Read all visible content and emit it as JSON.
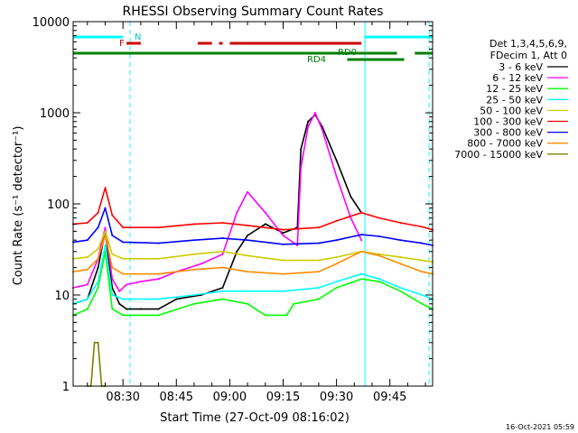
{
  "chart_data": {
    "type": "line",
    "title": "RHESSI Observing Summary Count Rates",
    "xlabel": "Start Time (27-Oct-09 08:16:02)",
    "ylabel": "Count Rate (s⁻¹ detector⁻¹)",
    "yscale": "log",
    "ylim": [
      1,
      10000
    ],
    "xlim": [
      "08:16",
      "09:57"
    ],
    "x_ticks": [
      "08:30",
      "08:45",
      "09:00",
      "09:15",
      "09:30",
      "09:45"
    ],
    "y_ticks": [
      "1",
      "10",
      "100",
      "1000",
      "10000"
    ],
    "legend_header": [
      "Det 1,3,4,5,6,9,",
      "FDecim 1, Att 0"
    ],
    "legend_position": "right",
    "timestamp": "16-Oct-2021 05:59",
    "flag_labels": {
      "N": "N",
      "F": "F",
      "RD0": "RD0",
      "RD4": "RD4"
    },
    "series": [
      {
        "name": "3 - 6 keV",
        "color": "#000000",
        "x": [
          "08:16",
          "08:20",
          "08:23",
          "08:25",
          "08:27",
          "08:29",
          "08:31",
          "08:35",
          "08:40",
          "08:45",
          "08:52",
          "08:58",
          "09:02",
          "09:05",
          "09:10",
          "09:15",
          "09:19",
          "09:20",
          "09:22",
          "09:24",
          "09:26",
          "09:30",
          "09:34",
          "09:37"
        ],
        "values": [
          8,
          9,
          20,
          50,
          12,
          8,
          7,
          7,
          7,
          9,
          10,
          12,
          30,
          45,
          60,
          48,
          55,
          400,
          800,
          950,
          700,
          300,
          120,
          80
        ]
      },
      {
        "name": "6 - 12 keV",
        "color": "#ff00ff",
        "x": [
          "08:16",
          "08:20",
          "08:23",
          "08:25",
          "08:27",
          "08:29",
          "08:31",
          "08:35",
          "08:40",
          "08:45",
          "08:52",
          "08:58",
          "09:02",
          "09:05",
          "09:10",
          "09:15",
          "09:19",
          "09:20",
          "09:22",
          "09:24",
          "09:26",
          "09:30",
          "09:34",
          "09:37"
        ],
        "values": [
          12,
          13,
          25,
          55,
          15,
          11,
          13,
          14,
          15,
          18,
          22,
          28,
          80,
          135,
          80,
          45,
          35,
          250,
          700,
          1000,
          650,
          200,
          70,
          40
        ]
      },
      {
        "name": "12 - 25 keV",
        "color": "#00ff00",
        "x": [
          "08:16",
          "08:20",
          "08:23",
          "08:25",
          "08:27",
          "08:30",
          "08:40",
          "08:50",
          "08:58",
          "09:05",
          "09:10",
          "09:16",
          "09:18",
          "09:25",
          "09:30",
          "09:37",
          "09:42",
          "09:48",
          "09:54",
          "09:57"
        ],
        "values": [
          6,
          7,
          12,
          30,
          7,
          6,
          6,
          8,
          9,
          8,
          6,
          6,
          8,
          9,
          12,
          15,
          14,
          11,
          8,
          7
        ]
      },
      {
        "name": "25 - 50 keV",
        "color": "#00ffff",
        "x": [
          "08:16",
          "08:20",
          "08:23",
          "08:25",
          "08:27",
          "08:30",
          "08:40",
          "08:50",
          "08:58",
          "09:05",
          "09:15",
          "09:25",
          "09:30",
          "09:37",
          "09:42",
          "09:48",
          "09:54",
          "09:57"
        ],
        "values": [
          8,
          9,
          14,
          35,
          10,
          9,
          9,
          10,
          11,
          11,
          11,
          12,
          14,
          17,
          15,
          12,
          10,
          9
        ]
      },
      {
        "name": "50 - 100 keV",
        "color": "#cccc00",
        "x": [
          "08:16",
          "08:20",
          "08:23",
          "08:25",
          "08:27",
          "08:30",
          "08:40",
          "08:50",
          "08:58",
          "09:05",
          "09:15",
          "09:25",
          "09:30",
          "09:37",
          "09:42",
          "09:48",
          "09:54",
          "09:57"
        ],
        "values": [
          25,
          26,
          32,
          50,
          28,
          25,
          25,
          28,
          30,
          27,
          24,
          24,
          26,
          30,
          28,
          26,
          24,
          23
        ]
      },
      {
        "name": "100 - 300 keV",
        "color": "#ff0000",
        "x": [
          "08:16",
          "08:20",
          "08:23",
          "08:25",
          "08:27",
          "08:30",
          "08:40",
          "08:50",
          "08:58",
          "09:05",
          "09:15",
          "09:25",
          "09:30",
          "09:37",
          "09:42",
          "09:48",
          "09:54",
          "09:57"
        ],
        "values": [
          60,
          62,
          80,
          150,
          75,
          55,
          55,
          60,
          62,
          58,
          52,
          55,
          65,
          80,
          70,
          62,
          56,
          52
        ]
      },
      {
        "name": "300 - 800 keV",
        "color": "#0000ff",
        "x": [
          "08:16",
          "08:20",
          "08:23",
          "08:25",
          "08:27",
          "08:30",
          "08:40",
          "08:50",
          "08:58",
          "09:05",
          "09:15",
          "09:25",
          "09:30",
          "09:37",
          "09:42",
          "09:48",
          "09:54",
          "09:57"
        ],
        "values": [
          38,
          40,
          55,
          90,
          45,
          38,
          37,
          40,
          42,
          40,
          36,
          37,
          40,
          46,
          44,
          40,
          37,
          35
        ]
      },
      {
        "name": "800 - 7000 keV",
        "color": "#ff8c00",
        "x": [
          "08:16",
          "08:20",
          "08:23",
          "08:25",
          "08:27",
          "08:30",
          "08:40",
          "08:50",
          "08:58",
          "09:05",
          "09:15",
          "09:25",
          "09:30",
          "09:37",
          "09:42",
          "09:48",
          "09:54",
          "09:57"
        ],
        "values": [
          18,
          19,
          25,
          45,
          20,
          17,
          17,
          19,
          20,
          18,
          17,
          18,
          22,
          30,
          27,
          22,
          18,
          17
        ]
      },
      {
        "name": "7000 - 15000 keV",
        "color": "#808000",
        "x": [
          "08:20",
          "08:21",
          "08:22",
          "08:23",
          "08:24",
          "08:25"
        ],
        "values": [
          1,
          1,
          3,
          3,
          1,
          1
        ]
      }
    ],
    "flag_bars": [
      {
        "label": "N",
        "color": "#00ffff",
        "segments": [
          [
            "08:16",
            "08:30"
          ],
          [
            "09:38",
            "09:57"
          ]
        ]
      },
      {
        "label": "F",
        "color": "#cc0000",
        "segments": [
          [
            "08:31",
            "08:35"
          ],
          [
            "08:51",
            "08:55"
          ],
          [
            "08:57",
            "08:58"
          ],
          [
            "09:00",
            "09:37"
          ]
        ]
      },
      {
        "label": "RD0",
        "color": "#008000",
        "segments": [
          [
            "08:16",
            "09:47"
          ],
          [
            "09:52",
            "09:57"
          ]
        ]
      },
      {
        "label": "RD4",
        "color": "#008000",
        "segments": [
          [
            "09:33",
            "09:49"
          ]
        ]
      }
    ],
    "vertical_lines": [
      {
        "time": "08:16",
        "color": "#00ffff",
        "style": "solid"
      },
      {
        "time": "08:32",
        "color": "#00ffff",
        "style": "dashed"
      },
      {
        "time": "09:38",
        "color": "#00ffff",
        "style": "solid"
      },
      {
        "time": "09:56",
        "color": "#00ffff",
        "style": "dashed"
      }
    ]
  }
}
